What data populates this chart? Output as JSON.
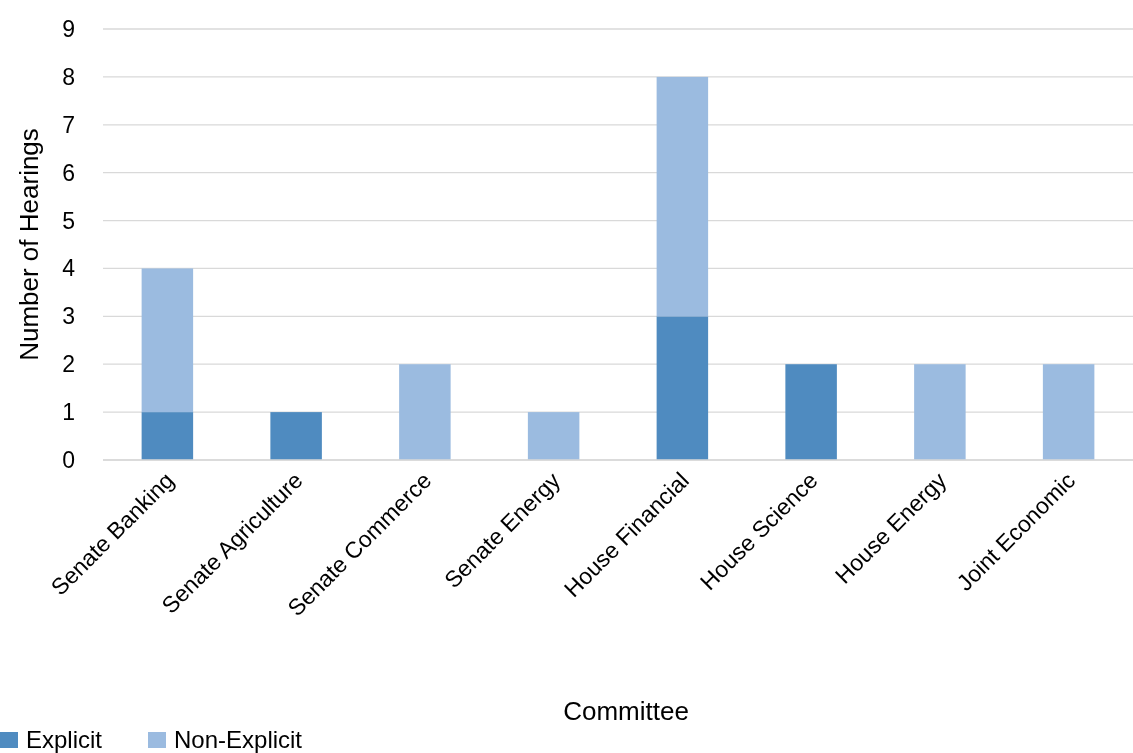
{
  "chart_data": {
    "type": "bar",
    "stacked": true,
    "xlabel": "Committee",
    "ylabel": "Number of Hearings",
    "categories": [
      "Senate Banking",
      "Senate Agriculture",
      "Senate Commerce",
      "Senate Energy",
      "House Financial",
      "House Science",
      "House Energy",
      "Joint Economic"
    ],
    "series": [
      {
        "name": "Explicit",
        "color": "#4f8bc0",
        "values": [
          1,
          1,
          0,
          0,
          3,
          2,
          0,
          0
        ]
      },
      {
        "name": "Non-Explicit",
        "color": "#9bbbe0",
        "values": [
          3,
          0,
          2,
          1,
          5,
          0,
          2,
          2
        ]
      }
    ],
    "ylim": [
      0,
      9
    ],
    "yticks": [
      0,
      1,
      2,
      3,
      4,
      5,
      6,
      7,
      8,
      9
    ],
    "grid": "y",
    "legend": "bottom left"
  }
}
